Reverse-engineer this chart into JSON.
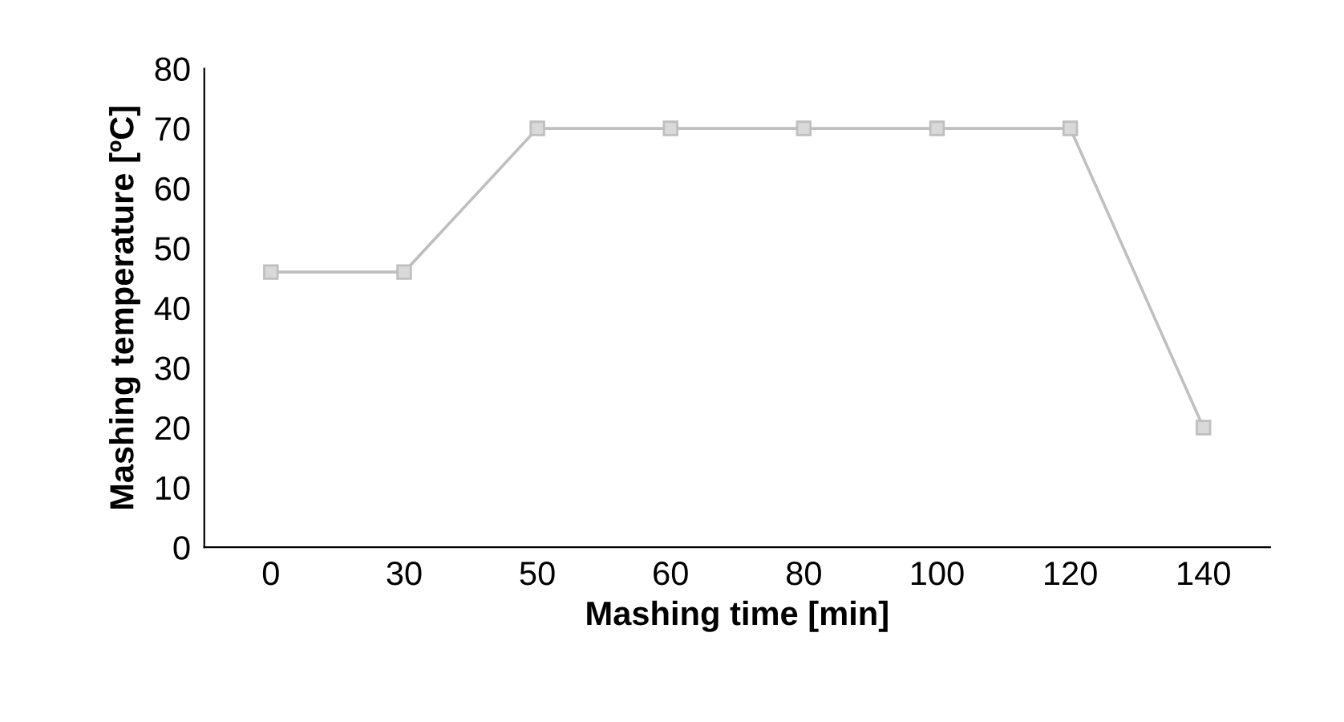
{
  "chart_data": {
    "type": "line",
    "xlabel": "Mashing time [min]",
    "ylabel": "Mashing temperature [ºC]",
    "categories": [
      "0",
      "30",
      "50",
      "60",
      "80",
      "100",
      "120",
      "140"
    ],
    "series": [
      {
        "color": "#bfbfbf",
        "values": [
          46,
          46,
          70,
          70,
          70,
          70,
          70,
          20
        ]
      }
    ],
    "ylim": [
      0,
      80
    ],
    "yticks": [
      0,
      10,
      20,
      30,
      40,
      50,
      60,
      70,
      80
    ],
    "grid": false,
    "marker": "square",
    "line_style": "solid"
  }
}
